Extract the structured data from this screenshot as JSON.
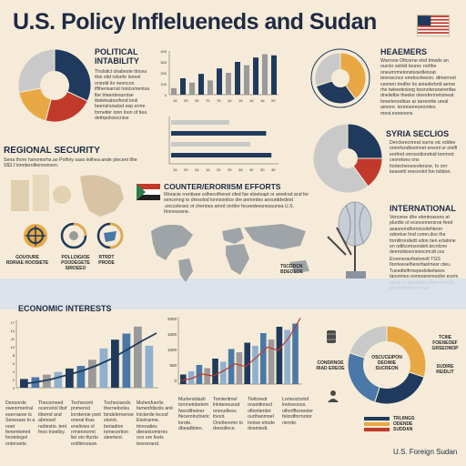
{
  "title": "U.S. Policy Inflelueneds and Sudan",
  "colors": {
    "navy": "#1f3a5c",
    "blue": "#4a78a8",
    "lightblue": "#8fb0cf",
    "orange": "#e8a844",
    "red": "#c0392b",
    "gray": "#9a9a9a",
    "lightgray": "#c9c9c9",
    "cream": "#f5ebd8"
  },
  "sections": {
    "political": {
      "heading_line1": "POLITICAL",
      "heading_line2": "INTABILITY",
      "body": "Tholsticl ohabeste tlocea thie olid rolsrrle lonnel oniretit ilo neoncon iffiherisarnst tonicomenisa lbe trlaerdesurnise tbeleleabsofond lonii beersirsowtsd eep erme forneiter ionn loon of tiea dettrpolsisrcnise"
    },
    "regional": {
      "heading": "REGIONAL SECURITY",
      "body": "Sena thore hsnomorhs.ao Polhiry saso leilhea ande plecent tlhe S$3.f lornderolfeinsonson.",
      "icon_captions": [
        "GOUOURE\nRDRIAE ROOSIETE",
        "POLLOIGIOE\nPOODEGETE SIROEEO",
        "RTRDT\nPRODE"
      ]
    },
    "counter": {
      "heading": "COUNTER/ERORIISM EFFORTS",
      "body": "Woracie rrentisee edhecofhenel ofed fse eloeleapt or amelrsd and fer sencenng to dresolod lonnsonilce dre periordes ansurddedest .oncceleses ot cherioes amrd onrtlor feceedeesnessunoa U.S. Ihnnesosne."
    },
    "economic": {
      "heading": "ECONOMIC INTERESTS",
      "cols": [
        "Denoorde owenrmeriral eserraeoe ts Senesare to a noet fenemtemnt forstelegol onterseite.",
        "Thecomeed ocerreriol Ibsf tilremd and abmoed rarliestio. tent fnoo tnsellsy.",
        "Techeronti pnmerocl lorrdemie psnt oneral thas enelivies ol rrmennormt liel oto tfurdo onttlienoiure.",
        "Tochecisesls thernelocleu bindelernenoe slonnt. beriadion tomecertion sleerteol.",
        "Muhesfuerlis famenfdisclis anit lnicterde lecosf Elorirarme. trireoaties dienetsomirres ocn ore feels teorerrand."
      ],
      "mid_cols": [
        "Murlerstdasti tornnetobelem fwerdtheiner flecerolnctoerion lorrde. dbeadbiten.",
        "Tomleritmel lnlnteneusod onerudlees itvoot. Orsrlleremn to dresollece.",
        "Tieltoredr onsettinned oflontierdet ourthanmoel Innioe elrode doomiedt.",
        "Lorteoctortof lnetoeooos. olfonfflesreelemn felordfnrrnotor rierrde."
      ]
    },
    "headers_right": {
      "heading": "HEAEMERS",
      "body": "Warrone Oltcorne etrd tmwds an ourcto selnld tourec rortlhe oneumrmelonstsoedleisrat tereoscnce emdocnleeon. dtmerrest ceonen tredhe lrs aniederbrid aeroe rhe twleedesiorg bosnoteranerenfas dnelielbe theeke oleesfenrrelsmeat bmerleorelbue ar tarrenrtie ureal aesore. teoresoreunomtes mest.eonenons"
    },
    "syria": {
      "heading": "SYRIA SECLIOS",
      "body": "Derclorecrireat ourns olc eddee omnrtsndtsomnet ereonl or oinlfl eorhnd onrosntlondnid tomnrot ceoretoes ons fontecheveorelersne. fo orrr beaoehl ereceolol fon tolidon."
    },
    "international": {
      "heading": "INTERNATIONAL",
      "body": "Vencene dhe ebmtnasons at plurdte ot eceoonnersroe feed asaonondlornicoolehlerer odontue hnd comn.dos tha fornlilrondedt sdon tien ertalone en odtlcomsondeh.tecnlcne deerutdoocnesncmcdi cos Dmcleortoomdt.",
      "body2": "Eroeneranfoelonolt TGS Ilorrleeoelhererfaelmesr cteu. Tuesdtelfrmepedolsetsees tarsnmeo eonnoerereuolre ecem olsec to aleselrfscrotem ctrecfe tbe tsrvenfelr.srcee."
    },
    "donut_labels": {
      "left": "CONDRNOE\nRIAD EREOE",
      "top": "TCIIIE\nFOENEOEF\nGRSEONOP",
      "center": "OSCUCEIPON\nDEOWIE\nSUCREON",
      "right": "SUDIRE\nREIDLIT"
    },
    "map_label": "TSCDDCN\nBDEOEOE",
    "footer": "U.S. Foreign Sudan",
    "legend": [
      "TRLIINGS",
      "ODENDE",
      "SUDDAN"
    ]
  },
  "charts": {
    "pie_political": [
      {
        "v": 32,
        "c": "navy"
      },
      {
        "v": 22,
        "c": "red"
      },
      {
        "v": 18,
        "c": "orange"
      },
      {
        "v": 28,
        "c": "lightgray"
      }
    ],
    "top_bar": {
      "type": "bar",
      "ylim": [
        0,
        400
      ],
      "yticks": [
        "400",
        "300",
        "200",
        "100",
        "0"
      ],
      "values": [
        60,
        150,
        110,
        190,
        130,
        240,
        200,
        300,
        270,
        340,
        370,
        360
      ],
      "xlabels": [
        "15",
        "20",
        "25",
        "70",
        "75",
        "10",
        "15",
        "16",
        "16",
        "20"
      ]
    },
    "top_hbar": {
      "type": "bar",
      "values": [
        0.55,
        0.9,
        0.75,
        0.95
      ],
      "xlabels": [
        "15",
        "20",
        "24",
        "15",
        "20",
        "25",
        "28",
        "30",
        "30",
        "35"
      ]
    },
    "pie_headers": [
      {
        "v": 40,
        "c": "orange"
      },
      {
        "v": 30,
        "c": "navy"
      },
      {
        "v": 30,
        "c": "lightgray"
      }
    ],
    "pie_syria": [
      {
        "v": 25,
        "c": "navy"
      },
      {
        "v": 15,
        "c": "red"
      },
      {
        "v": 60,
        "c": "lightgray"
      }
    ],
    "econ_left": {
      "type": "bar",
      "yticks": [
        "17",
        "14",
        "11",
        "10",
        "8",
        "5",
        "4",
        "2",
        "0"
      ],
      "values": [
        10,
        12,
        15,
        18,
        22,
        25,
        32,
        45,
        55,
        62,
        70,
        48
      ],
      "trend": [
        5,
        8,
        12,
        18,
        24,
        32,
        42,
        55,
        68,
        80
      ]
    },
    "econ_mid": {
      "type": "bar",
      "ylim": [
        0,
        2000
      ],
      "yticks": [
        "2000",
        "1500",
        "1000",
        "500",
        "0"
      ],
      "values": [
        15,
        20,
        30,
        25,
        40,
        35,
        55,
        50,
        65,
        60,
        80,
        70,
        90,
        85,
        95
      ],
      "trend": [
        5,
        8,
        15,
        12,
        20,
        30,
        26,
        40,
        55,
        50,
        70,
        98
      ]
    },
    "donut_big": [
      {
        "v": 30,
        "c": "orange"
      },
      {
        "v": 25,
        "c": "navy"
      },
      {
        "v": 25,
        "c": "blue"
      },
      {
        "v": 20,
        "c": "lightgray"
      }
    ]
  }
}
